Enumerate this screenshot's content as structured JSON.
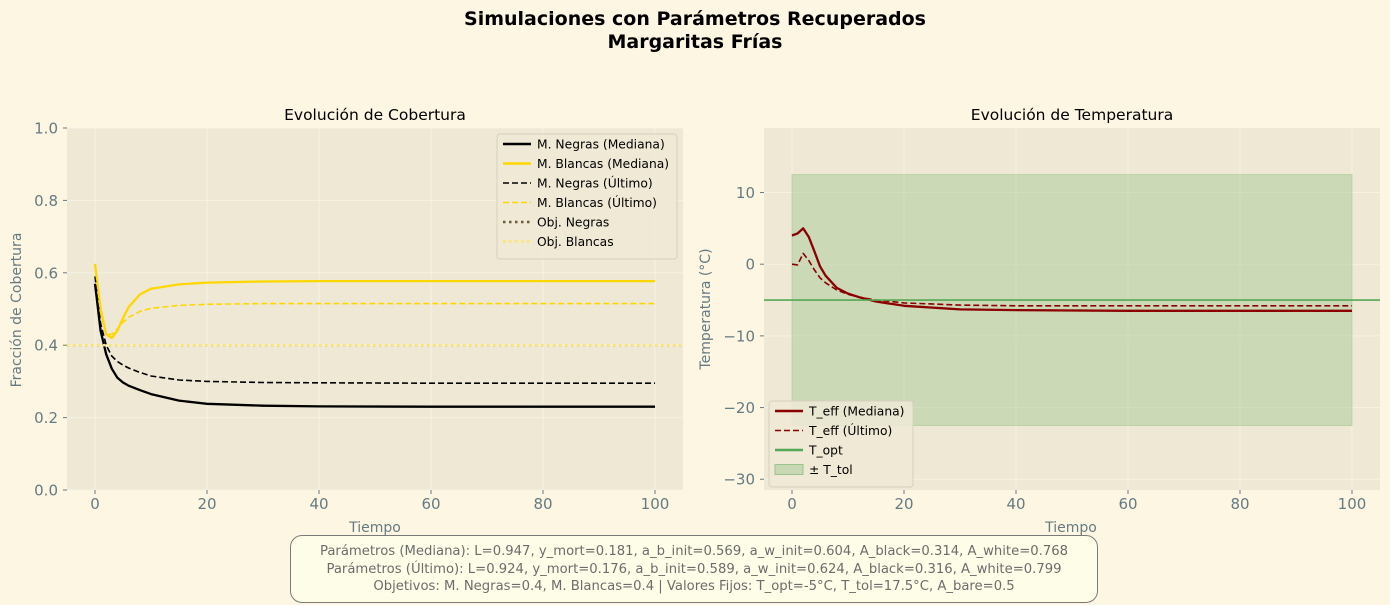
{
  "figure": {
    "title_line1": "Simulaciones con Parámetros Recuperados",
    "title_line2": "Margaritas Frías"
  },
  "info_box": {
    "line1": "Parámetros (Mediana): L=0.947, y_mort=0.181, a_b_init=0.569, a_w_init=0.604, A_black=0.314, A_white=0.768",
    "line2": "Parámetros (Último): L=0.924, y_mort=0.176, a_b_init=0.589, a_w_init=0.624, A_black=0.316, A_white=0.799",
    "line3": "Objetivos: M. Negras=0.4, M. Blancas=0.4 | Valores Fijos: T_opt=-5°C, T_tol=17.5°C, A_bare=0.5"
  },
  "colors": {
    "background": "#fdf6e3",
    "axes_bg": "#eee8d5",
    "black_series": "#000000",
    "white_series": "#ffd700",
    "obj_negras": "#6b5b3a",
    "obj_blancas": "#ffe566",
    "temp_series": "#8b0000",
    "t_opt": "#55a855",
    "tolerance_fill": "#9cc48c"
  },
  "chart_data": [
    {
      "type": "line",
      "title": "Evolución de Cobertura",
      "xlabel": "Tiempo",
      "ylabel": "Fracción de Cobertura",
      "xlim": [
        -5,
        105
      ],
      "ylim": [
        0,
        1.0
      ],
      "xticks": [
        0,
        20,
        40,
        60,
        80,
        100
      ],
      "xtick_labels": [
        "0",
        "20",
        "40",
        "60",
        "80",
        "100"
      ],
      "yticks": [
        0,
        0.2,
        0.4,
        0.6,
        0.8,
        1.0
      ],
      "ytick_labels": [
        "0.0",
        "0.2",
        "0.4",
        "0.6",
        "0.8",
        "1.0"
      ],
      "grid": true,
      "legend_position": "top-right",
      "series": [
        {
          "name": "M. Negras (Mediana)",
          "color": "#000000",
          "style": "solid",
          "x": [
            0,
            1,
            2,
            3,
            4,
            5,
            6,
            8,
            10,
            15,
            20,
            30,
            40,
            60,
            80,
            100
          ],
          "y": [
            0.57,
            0.44,
            0.375,
            0.335,
            0.31,
            0.297,
            0.288,
            0.276,
            0.265,
            0.247,
            0.238,
            0.233,
            0.231,
            0.23,
            0.23,
            0.23
          ]
        },
        {
          "name": "M. Blancas (Mediana)",
          "color": "#ffd700",
          "style": "solid",
          "x": [
            0,
            1,
            2,
            3,
            4,
            5,
            6,
            8,
            10,
            15,
            20,
            30,
            40,
            60,
            80,
            100
          ],
          "y": [
            0.625,
            0.5,
            0.43,
            0.42,
            0.44,
            0.475,
            0.505,
            0.54,
            0.556,
            0.568,
            0.573,
            0.576,
            0.577,
            0.577,
            0.577,
            0.577
          ]
        },
        {
          "name": "M. Negras (Último)",
          "color": "#000000",
          "style": "dashed",
          "x": [
            0,
            1,
            2,
            3,
            4,
            5,
            6,
            8,
            10,
            15,
            20,
            30,
            40,
            60,
            80,
            100
          ],
          "y": [
            0.59,
            0.46,
            0.4,
            0.37,
            0.355,
            0.345,
            0.337,
            0.325,
            0.315,
            0.304,
            0.3,
            0.297,
            0.296,
            0.295,
            0.295,
            0.295
          ]
        },
        {
          "name": "M. Blancas (Último)",
          "color": "#ffd700",
          "style": "dashed",
          "x": [
            0,
            1,
            2,
            3,
            4,
            5,
            6,
            8,
            10,
            15,
            20,
            30,
            40,
            60,
            80,
            100
          ],
          "y": [
            0.62,
            0.49,
            0.43,
            0.43,
            0.445,
            0.463,
            0.477,
            0.493,
            0.502,
            0.51,
            0.513,
            0.515,
            0.515,
            0.515,
            0.515,
            0.515
          ]
        },
        {
          "name": "Obj. Negras",
          "color": "#6b5b3a",
          "style": "dotted",
          "hline": 0.4
        },
        {
          "name": "Obj. Blancas",
          "color": "#ffe566",
          "style": "dotted",
          "hline": 0.4
        }
      ]
    },
    {
      "type": "line",
      "title": "Evolución de Temperatura",
      "xlabel": "Tiempo",
      "ylabel": "Temperatura (°C)",
      "xlim": [
        -5,
        105
      ],
      "ylim": [
        -31.5,
        19
      ],
      "xticks": [
        0,
        20,
        40,
        60,
        80,
        100
      ],
      "xtick_labels": [
        "0",
        "20",
        "40",
        "60",
        "80",
        "100"
      ],
      "yticks": [
        -30,
        -20,
        -10,
        0,
        10
      ],
      "ytick_labels": [
        "−30",
        "−20",
        "−10",
        "0",
        "10"
      ],
      "grid": true,
      "legend_position": "bottom-left",
      "tolerance_band": {
        "label": "± T_tol",
        "x": [
          0,
          100
        ],
        "y": [
          -22.5,
          12.5
        ],
        "color": "#9cc48c"
      },
      "series": [
        {
          "name": "T_eff (Mediana)",
          "color": "#8b0000",
          "style": "solid",
          "x": [
            0,
            1,
            2,
            3,
            4,
            5,
            6,
            8,
            10,
            12,
            15,
            20,
            30,
            40,
            60,
            80,
            100
          ],
          "y": [
            4.0,
            4.3,
            5.0,
            3.8,
            1.8,
            -0.3,
            -1.6,
            -3.3,
            -4.1,
            -4.6,
            -5.2,
            -5.8,
            -6.3,
            -6.4,
            -6.5,
            -6.5,
            -6.5
          ]
        },
        {
          "name": "T_eff (Último)",
          "color": "#8b0000",
          "style": "dashed",
          "x": [
            0,
            1,
            2,
            3,
            4,
            5,
            6,
            8,
            10,
            12,
            15,
            20,
            30,
            40,
            60,
            80,
            100
          ],
          "y": [
            0.0,
            -0.1,
            1.5,
            0.5,
            -0.8,
            -1.9,
            -2.6,
            -3.6,
            -4.2,
            -4.6,
            -5.0,
            -5.4,
            -5.7,
            -5.8,
            -5.8,
            -5.8,
            -5.8
          ]
        },
        {
          "name": "T_opt",
          "color": "#55a855",
          "style": "solid",
          "hline": -5
        }
      ]
    }
  ]
}
